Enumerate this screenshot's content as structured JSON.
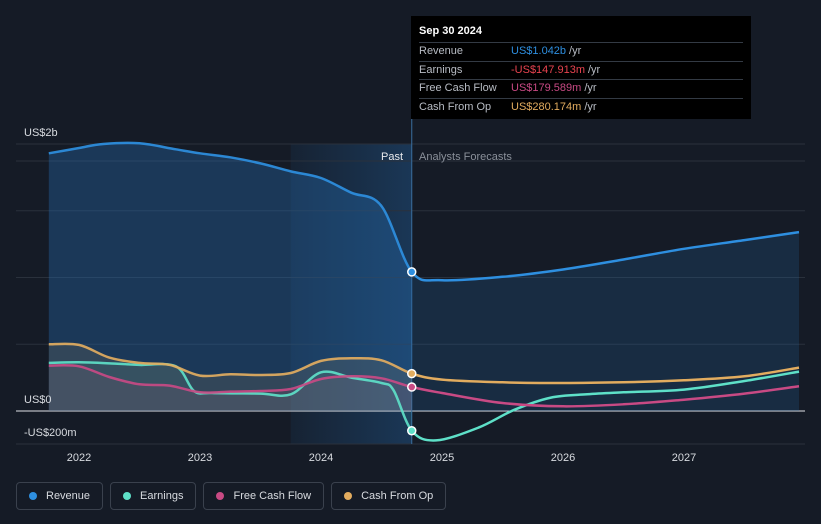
{
  "colors": {
    "background": "#151b26",
    "revenue": "#2e8fe0",
    "earnings": "#5ee0c8",
    "free_cash_flow": "#c84a84",
    "cash_from_op": "#e2ac5f",
    "earnings_value": "#e8434f"
  },
  "tooltip": {
    "date": "Sep 30 2024",
    "rows": [
      {
        "label": "Revenue",
        "value": "US$1.042b",
        "unit": "/yr",
        "color": "#2e8fe0"
      },
      {
        "label": "Earnings",
        "value": "-US$147.913m",
        "unit": "/yr",
        "color": "#e8434f"
      },
      {
        "label": "Free Cash Flow",
        "value": "US$179.589m",
        "unit": "/yr",
        "color": "#c84a84"
      },
      {
        "label": "Cash From Op",
        "value": "US$280.174m",
        "unit": "/yr",
        "color": "#e2ac5f"
      }
    ]
  },
  "legend": [
    {
      "label": "Revenue",
      "color": "#2e8fe0",
      "icon": "revenue-dot-icon"
    },
    {
      "label": "Earnings",
      "color": "#5ee0c8",
      "icon": "earnings-dot-icon"
    },
    {
      "label": "Free Cash Flow",
      "color": "#c84a84",
      "icon": "free-cash-flow-dot-icon"
    },
    {
      "label": "Cash From Op",
      "color": "#e2ac5f",
      "icon": "cash-from-op-dot-icon"
    }
  ],
  "chart_data": {
    "type": "line",
    "title": "",
    "y_unit": "US$ millions",
    "y_tick_labels": [
      {
        "value": 2000,
        "label": "US$2b"
      },
      {
        "value": 0,
        "label": "US$0"
      },
      {
        "value": -200,
        "label": "-US$200m"
      }
    ],
    "ylim": [
      -250,
      2050
    ],
    "xlim": [
      2021.7,
      2027.95
    ],
    "x_ticks": [
      2022,
      2023,
      2024,
      2025,
      2026,
      2027
    ],
    "grid": true,
    "period_labels": {
      "past": "Past",
      "forecast": "Analysts Forecasts"
    },
    "divider_x": 2024.75,
    "highlight_range": [
      2023.75,
      2024.75
    ],
    "highlight_date": "Sep 30 2024",
    "series": [
      {
        "name": "Revenue",
        "key": "revenue",
        "points": [
          [
            2021.75,
            1930
          ],
          [
            2022.0,
            1970
          ],
          [
            2022.2,
            2000
          ],
          [
            2022.5,
            2005
          ],
          [
            2022.8,
            1960
          ],
          [
            2023.0,
            1930
          ],
          [
            2023.25,
            1900
          ],
          [
            2023.5,
            1855
          ],
          [
            2023.75,
            1795
          ],
          [
            2024.0,
            1745
          ],
          [
            2024.25,
            1635
          ],
          [
            2024.5,
            1535
          ],
          [
            2024.75,
            1042
          ],
          [
            2025.0,
            980
          ],
          [
            2025.5,
            1005
          ],
          [
            2026.0,
            1060
          ],
          [
            2026.5,
            1135
          ],
          [
            2027.0,
            1215
          ],
          [
            2027.5,
            1280
          ],
          [
            2027.95,
            1340
          ]
        ]
      },
      {
        "name": "Earnings",
        "key": "earnings",
        "points": [
          [
            2021.75,
            360
          ],
          [
            2022.0,
            365
          ],
          [
            2022.3,
            355
          ],
          [
            2022.5,
            345
          ],
          [
            2022.8,
            335
          ],
          [
            2022.95,
            150
          ],
          [
            2023.1,
            135
          ],
          [
            2023.5,
            130
          ],
          [
            2023.75,
            125
          ],
          [
            2024.0,
            290
          ],
          [
            2024.25,
            250
          ],
          [
            2024.5,
            210
          ],
          [
            2024.6,
            155
          ],
          [
            2024.75,
            -147.913
          ],
          [
            2024.95,
            -220
          ],
          [
            2025.3,
            -125
          ],
          [
            2025.6,
            10
          ],
          [
            2025.9,
            100
          ],
          [
            2026.2,
            125
          ],
          [
            2026.5,
            140
          ],
          [
            2027.0,
            160
          ],
          [
            2027.5,
            225
          ],
          [
            2027.95,
            295
          ]
        ]
      },
      {
        "name": "Free Cash Flow",
        "key": "free_cash_flow",
        "points": [
          [
            2021.75,
            340
          ],
          [
            2022.0,
            335
          ],
          [
            2022.25,
            255
          ],
          [
            2022.5,
            200
          ],
          [
            2022.75,
            190
          ],
          [
            2023.0,
            140
          ],
          [
            2023.25,
            145
          ],
          [
            2023.5,
            150
          ],
          [
            2023.75,
            165
          ],
          [
            2024.0,
            240
          ],
          [
            2024.25,
            260
          ],
          [
            2024.5,
            245
          ],
          [
            2024.75,
            179.589
          ],
          [
            2025.0,
            135
          ],
          [
            2025.5,
            60
          ],
          [
            2026.0,
            35
          ],
          [
            2026.5,
            50
          ],
          [
            2027.0,
            85
          ],
          [
            2027.5,
            130
          ],
          [
            2027.95,
            185
          ]
        ]
      },
      {
        "name": "Cash From Op",
        "key": "cash_from_op",
        "points": [
          [
            2021.75,
            500
          ],
          [
            2022.0,
            495
          ],
          [
            2022.25,
            400
          ],
          [
            2022.5,
            360
          ],
          [
            2022.75,
            345
          ],
          [
            2023.0,
            265
          ],
          [
            2023.25,
            275
          ],
          [
            2023.5,
            270
          ],
          [
            2023.75,
            285
          ],
          [
            2024.0,
            375
          ],
          [
            2024.25,
            395
          ],
          [
            2024.5,
            380
          ],
          [
            2024.75,
            280.174
          ],
          [
            2025.0,
            235
          ],
          [
            2025.5,
            215
          ],
          [
            2026.0,
            210
          ],
          [
            2026.5,
            215
          ],
          [
            2027.0,
            230
          ],
          [
            2027.5,
            260
          ],
          [
            2027.95,
            325
          ]
        ]
      }
    ]
  }
}
